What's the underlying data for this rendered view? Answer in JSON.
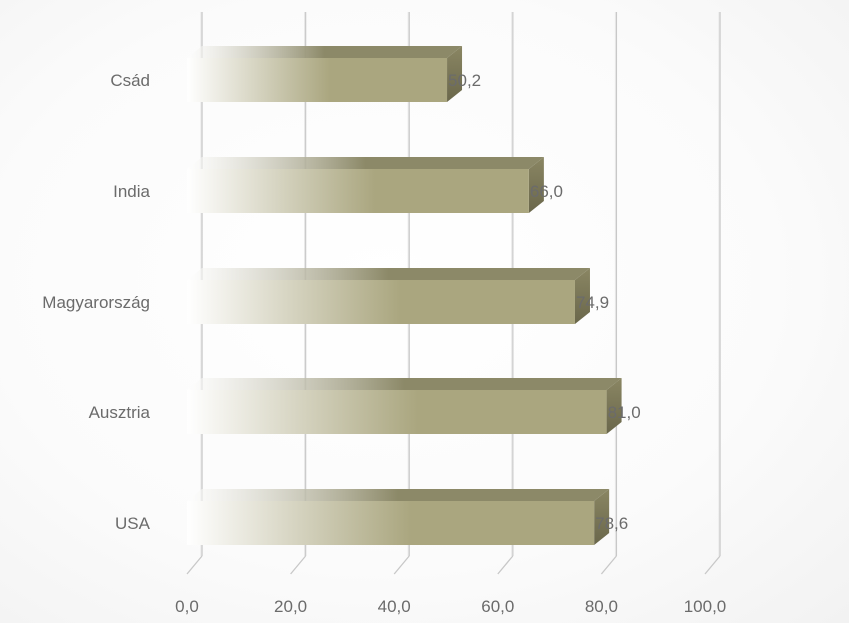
{
  "chart_data": {
    "type": "bar",
    "orientation": "horizontal",
    "style": "3d-clustered",
    "categories": [
      "Csád",
      "India",
      "Magyarország",
      "Ausztria",
      "USA"
    ],
    "series": [
      {
        "values": [
          50.2,
          66.0,
          74.9,
          81.0,
          78.6
        ]
      }
    ],
    "data_labels": [
      "50,2",
      "66,0",
      "74,9",
      "81,0",
      "78,6"
    ],
    "xlim": [
      0,
      100
    ],
    "x_ticks": [
      0,
      20,
      40,
      60,
      80,
      100
    ],
    "x_tick_labels": [
      "0,0",
      "20,0",
      "40,0",
      "60,0",
      "80,0",
      "100,0"
    ],
    "grid": "vertical",
    "legend": "none",
    "colors": {
      "bar_front_start": "#ffffff",
      "bar_front_end": "#aaa67f",
      "bar_top": "#8c8968",
      "bar_side": "#6f6c50",
      "gridline": "#c8c8c8"
    }
  }
}
